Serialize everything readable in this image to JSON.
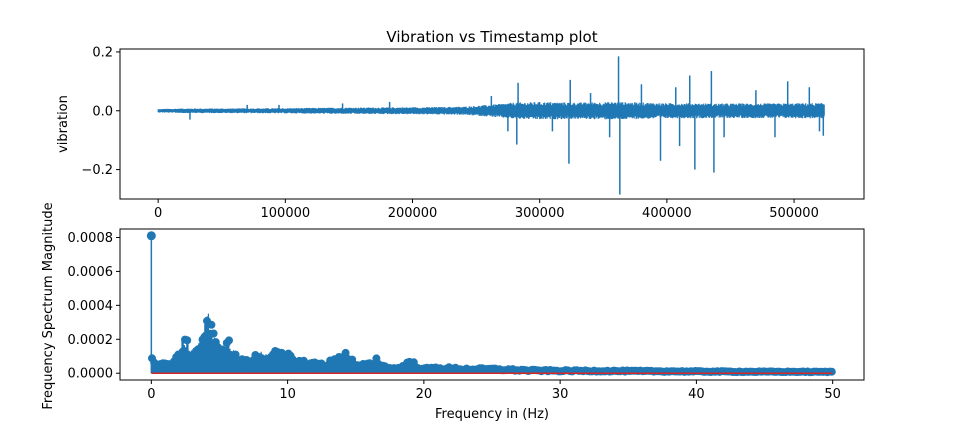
{
  "chart_data": [
    {
      "type": "line",
      "title": "Vibration vs Timestamp plot",
      "xlabel": "",
      "ylabel": "vibration",
      "xlim": [
        -30000,
        555000
      ],
      "ylim": [
        -0.3,
        0.21
      ],
      "xticks": [
        0,
        100000,
        200000,
        300000,
        400000,
        500000
      ],
      "xtick_labels": [
        "0",
        "100000",
        "200000",
        "300000",
        "400000",
        "500000"
      ],
      "yticks": [
        -0.2,
        0.0,
        0.2
      ],
      "ytick_labels": [
        "−0.2",
        "0.0",
        "0.2"
      ],
      "grid": false,
      "color": "#1f77b4",
      "envelope": {
        "x": [
          0,
          20000,
          50000,
          100000,
          150000,
          200000,
          240000,
          260000,
          280000,
          300000,
          330000,
          360000,
          400000,
          440000,
          480000,
          520000
        ],
        "amplitude": [
          0.006,
          0.008,
          0.008,
          0.009,
          0.011,
          0.012,
          0.014,
          0.02,
          0.028,
          0.03,
          0.028,
          0.03,
          0.026,
          0.025,
          0.025,
          0.026
        ]
      },
      "spikes": [
        {
          "x": 25000,
          "y": -0.03
        },
        {
          "x": 70000,
          "y": 0.02
        },
        {
          "x": 95000,
          "y": 0.02
        },
        {
          "x": 145000,
          "y": 0.025
        },
        {
          "x": 182000,
          "y": 0.03
        },
        {
          "x": 262000,
          "y": 0.05
        },
        {
          "x": 275000,
          "y": -0.07
        },
        {
          "x": 282000,
          "y": -0.115
        },
        {
          "x": 283000,
          "y": 0.095
        },
        {
          "x": 310000,
          "y": -0.07
        },
        {
          "x": 323000,
          "y": -0.18
        },
        {
          "x": 324000,
          "y": 0.105
        },
        {
          "x": 340000,
          "y": 0.06
        },
        {
          "x": 355000,
          "y": -0.09
        },
        {
          "x": 362000,
          "y": 0.185
        },
        {
          "x": 363000,
          "y": -0.285
        },
        {
          "x": 380000,
          "y": 0.09
        },
        {
          "x": 395000,
          "y": -0.17
        },
        {
          "x": 407000,
          "y": 0.08
        },
        {
          "x": 410000,
          "y": -0.12
        },
        {
          "x": 418000,
          "y": 0.12
        },
        {
          "x": 422000,
          "y": -0.2
        },
        {
          "x": 435000,
          "y": 0.135
        },
        {
          "x": 437000,
          "y": -0.21
        },
        {
          "x": 445000,
          "y": -0.09
        },
        {
          "x": 470000,
          "y": 0.07
        },
        {
          "x": 485000,
          "y": -0.09
        },
        {
          "x": 495000,
          "y": 0.1
        },
        {
          "x": 512000,
          "y": 0.08
        },
        {
          "x": 520000,
          "y": -0.07
        },
        {
          "x": 523000,
          "y": -0.085
        }
      ]
    },
    {
      "type": "stem",
      "title": "",
      "xlabel": "Frequency in (Hz)",
      "ylabel": "Frequency Spectrum Magnitude",
      "xlim": [
        -2.3,
        52.3
      ],
      "ylim": [
        -4e-05,
        0.00085
      ],
      "xticks": [
        0,
        10,
        20,
        30,
        40,
        50
      ],
      "xtick_labels": [
        "0",
        "10",
        "20",
        "30",
        "40",
        "50"
      ],
      "yticks": [
        0.0,
        0.0002,
        0.0004,
        0.0006,
        0.0008
      ],
      "ytick_labels": [
        "0.0000",
        "0.0002",
        "0.0004",
        "0.0006",
        "0.0008"
      ],
      "grid": false,
      "marker_color": "#1f77b4",
      "baseline_color": "#d62728",
      "dc_component": {
        "x": 0.0,
        "y": 0.00081
      },
      "envelope": {
        "x": [
          0.05,
          0.5,
          1.0,
          1.6,
          2.0,
          2.3,
          2.6,
          3.0,
          3.3,
          3.7,
          4.0,
          4.2,
          4.5,
          4.8,
          5.2,
          5.6,
          6.0,
          6.5,
          7.0,
          7.5,
          8.0,
          8.5,
          9.0,
          9.5,
          10.0,
          11.0,
          12.0,
          13.0,
          13.5,
          14.0,
          14.5,
          15.0,
          16.0,
          16.5,
          17.0,
          18.0,
          19.0,
          20.0,
          21.0,
          23.0,
          25.0,
          28.0,
          31.0,
          35.0,
          40.0,
          45.0,
          50.0
        ],
        "y": [
          9e-05,
          8e-05,
          7e-05,
          6e-05,
          0.00013,
          0.00022,
          0.0002,
          0.00013,
          0.00016,
          0.00024,
          0.00031,
          0.00037,
          0.00027,
          0.00018,
          0.00016,
          0.00022,
          0.00014,
          9e-05,
          8e-05,
          0.00011,
          0.00013,
          0.00011,
          0.00014,
          0.00012,
          0.00012,
          8e-05,
          7e-05,
          7e-05,
          0.0001,
          0.00014,
          0.00012,
          5e-05,
          6e-05,
          0.0001,
          5e-05,
          3e-05,
          8e-05,
          3e-05,
          4e-05,
          3e-05,
          3e-05,
          2e-05,
          1.8e-05,
          1.6e-05,
          1.3e-05,
          1.1e-05,
          1e-05
        ]
      }
    }
  ]
}
